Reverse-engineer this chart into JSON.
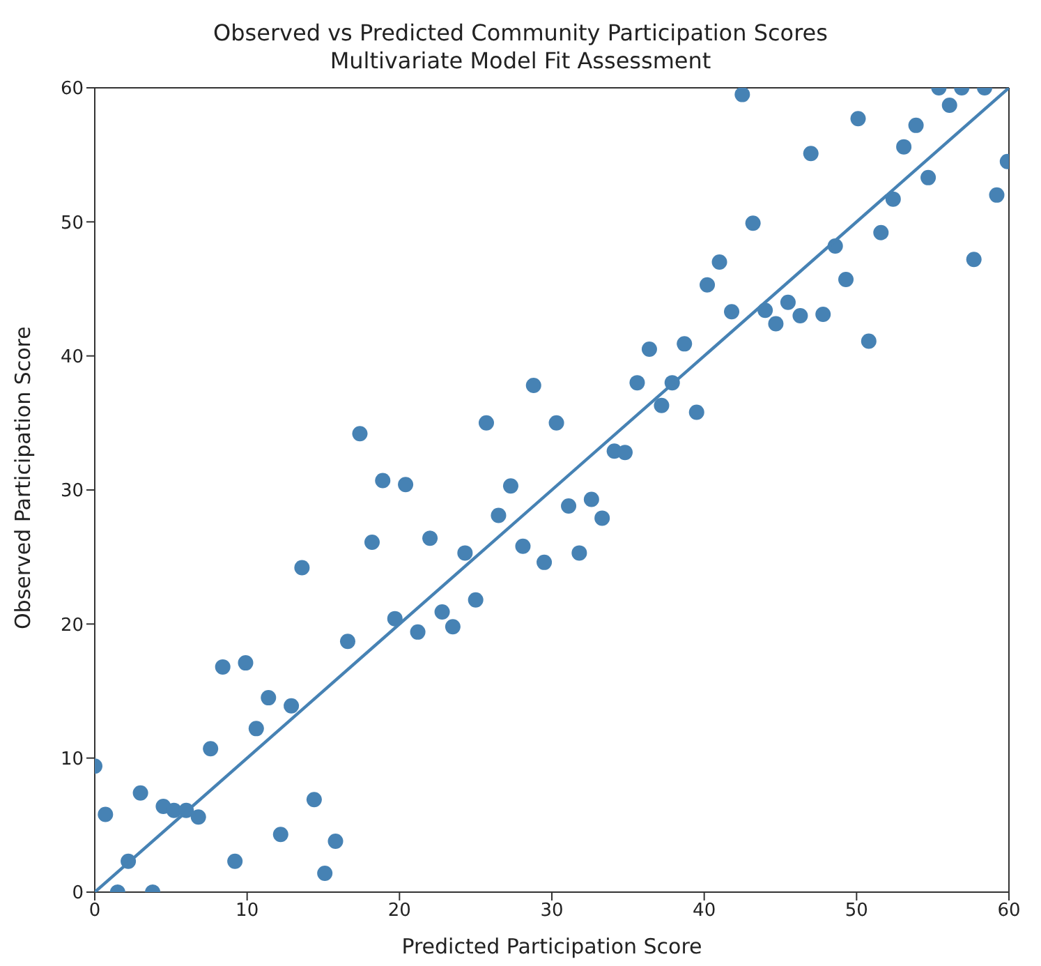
{
  "chart_data": {
    "type": "scatter",
    "title": "Observed vs Predicted Community Participation Scores",
    "subtitle": "Multivariate Model Fit Assessment",
    "xlabel": "Predicted Participation Score",
    "ylabel": "Observed Participation Score",
    "xlim": [
      0,
      60
    ],
    "ylim": [
      0,
      60
    ],
    "xticks": [
      0,
      10,
      20,
      30,
      40,
      50,
      60
    ],
    "yticks": [
      0,
      10,
      20,
      30,
      40,
      50,
      60
    ],
    "grid": false,
    "series": [
      {
        "marker": "circle",
        "color": "#4682b4",
        "x": [
          0,
          0.7,
          1.5,
          2.2,
          3,
          3.8,
          4.5,
          5.2,
          6,
          6.8,
          7.6,
          8.4,
          9.2,
          9.9,
          10.6,
          11.4,
          12.2,
          12.9,
          13.6,
          14.4,
          15.1,
          15.8,
          16.6,
          17.4,
          18.2,
          18.9,
          19.7,
          20.4,
          21.2,
          22,
          22.8,
          23.5,
          24.3,
          25,
          25.7,
          26.5,
          27.3,
          28.1,
          28.8,
          29.5,
          30.3,
          31.1,
          31.8,
          32.6,
          33.3,
          34.1,
          34.8,
          35.6,
          36.4,
          37.2,
          37.9,
          38.7,
          39.5,
          40.2,
          41,
          41.8,
          42.5,
          43.2,
          44,
          44.7,
          45.5,
          46.3,
          47,
          47.8,
          48.6,
          49.3,
          50.1,
          50.8,
          51.6,
          52.4,
          53.1,
          53.9,
          54.7,
          55.4,
          56.1,
          56.9,
          57.7,
          58.4,
          59.2,
          59.9
        ],
        "values": [
          9.4,
          5.8,
          0,
          2.3,
          7.4,
          0,
          6.4,
          6.1,
          6.1,
          5.6,
          10.7,
          16.8,
          2.3,
          17.1,
          12.2,
          14.5,
          4.3,
          13.9,
          24.2,
          6.9,
          1.4,
          3.8,
          18.7,
          34.2,
          26.1,
          30.7,
          20.4,
          30.4,
          19.4,
          26.4,
          20.9,
          19.8,
          25.3,
          21.8,
          35,
          28.1,
          30.3,
          25.8,
          37.8,
          24.6,
          35,
          28.8,
          25.3,
          29.3,
          27.9,
          32.9,
          32.8,
          38,
          40.5,
          36.3,
          38,
          40.9,
          35.8,
          45.3,
          47,
          43.3,
          59.5,
          49.9,
          43.4,
          42.4,
          44,
          43,
          55.1,
          43.1,
          48.2,
          45.7,
          57.7,
          41.1,
          49.2,
          51.7,
          55.6,
          57.2,
          53.3,
          60,
          58.7,
          60,
          47.2,
          60,
          52,
          54.5
        ]
      },
      {
        "type": "line",
        "marker": "none",
        "color": "#4682b4",
        "x": [
          0,
          60
        ],
        "values": [
          0,
          60
        ]
      }
    ]
  }
}
